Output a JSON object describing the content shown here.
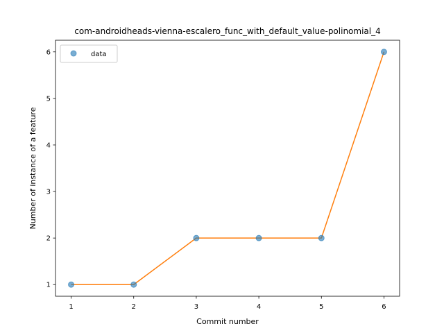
{
  "chart_data": {
    "type": "line",
    "title": "com-androidheads-vienna-escalero_func_with_default_value-polinomial_4",
    "xlabel": "Commit number",
    "ylabel": "Number of instance of a feature",
    "x": [
      1,
      2,
      3,
      4,
      5,
      6
    ],
    "xticks": [
      1,
      2,
      3,
      4,
      5,
      6
    ],
    "yticks": [
      1,
      2,
      3,
      4,
      5,
      6
    ],
    "xlim": [
      0.75,
      6.25
    ],
    "ylim": [
      0.75,
      6.25
    ],
    "grid": false,
    "legend_position": "top-left",
    "series": [
      {
        "name": "data",
        "kind": "scatter",
        "color": "#1f77b4",
        "values": [
          1,
          1,
          2,
          2,
          2,
          6
        ]
      },
      {
        "kind": "line",
        "color": "#ff7f0e",
        "values": [
          1,
          1,
          2,
          2,
          2,
          6
        ]
      }
    ]
  }
}
